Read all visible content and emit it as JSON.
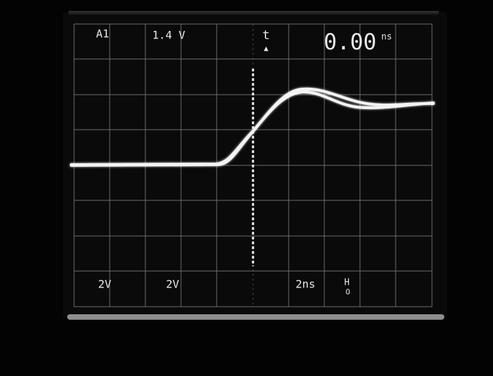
{
  "readout": {
    "channel": "A1",
    "trigger_level": "1.4 V",
    "delta_time_symbol": "t",
    "delta_marker": "▲",
    "time_value": "0.00",
    "time_unit": "ns",
    "ch1_scale": "2V",
    "ch2_scale": "2V",
    "timebase": "2ns",
    "mode_top": "H",
    "mode_bottom": "O"
  }
}
